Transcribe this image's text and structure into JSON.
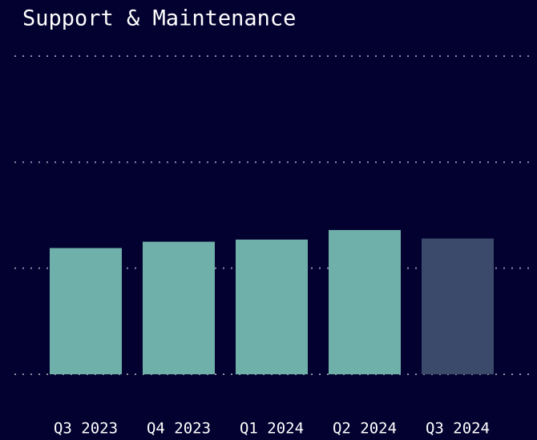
{
  "chart_data": {
    "type": "bar",
    "title": "Support & Maintenance",
    "categories": [
      "Q3 2023",
      "Q4 2023",
      "Q1 2024",
      "Q2 2024",
      "Q3 2024"
    ],
    "values": [
      1.19,
      1.25,
      1.27,
      1.36,
      1.28
    ],
    "colors": [
      "#6fb1aa",
      "#6fb1aa",
      "#6fb1aa",
      "#6fb1aa",
      "#3b4a6b"
    ],
    "ylim": [
      0,
      3
    ],
    "yticks": [
      0,
      1,
      2,
      3
    ],
    "grid": true
  }
}
